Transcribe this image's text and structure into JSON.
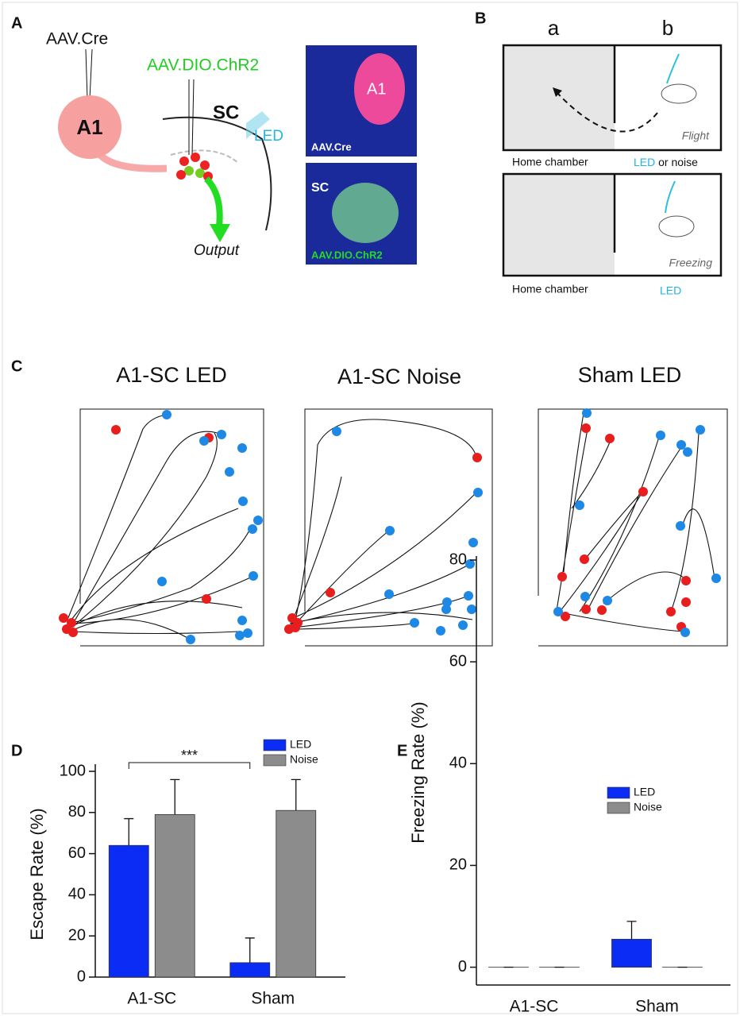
{
  "panels": {
    "A": {
      "letter": "A",
      "virus1": "AAV.Cre",
      "region": "A1",
      "virus2": "AAV.DIO.ChR2",
      "target": "SC",
      "light": "LED",
      "output": "Output",
      "image1": {
        "region": "A1",
        "label": "AAV.Cre"
      },
      "image2": {
        "region": "SC",
        "label": "AAV.DIO.ChR2"
      }
    },
    "B": {
      "letter": "B",
      "columns": [
        "a",
        "b"
      ],
      "top": {
        "behavior": "Flight",
        "left_label": "Home chamber",
        "stim_led": "LED",
        "stim_rest": " or noise"
      },
      "bottom": {
        "behavior": "Freezing",
        "left_label": "Home chamber",
        "stim_led": "LED"
      }
    },
    "C": {
      "letter": "C",
      "titles": [
        "A1-SC LED",
        "A1-SC Noise",
        "Sham LED"
      ]
    }
  },
  "chart_data": [
    {
      "type": "bar",
      "panel": "D",
      "ylabel": "Escape Rate (%)",
      "categories": [
        "A1-SC",
        "Sham"
      ],
      "series": [
        {
          "name": "LED",
          "color": "#0a2cf5",
          "values": [
            64,
            7
          ],
          "errors": [
            13,
            12
          ]
        },
        {
          "name": "Noise",
          "color": "#8c8c8c",
          "values": [
            79,
            81
          ],
          "errors": [
            17,
            15
          ]
        }
      ],
      "ylim": [
        0,
        100
      ],
      "yticks": [
        0,
        20,
        40,
        60,
        80,
        100
      ],
      "annotation": "***",
      "legend": "top-right"
    },
    {
      "type": "bar",
      "panel": "E",
      "ylabel": "Freezing Rate (%)",
      "categories": [
        "A1-SC",
        "Sham"
      ],
      "series": [
        {
          "name": "LED",
          "color": "#0a2cf5",
          "values": [
            0,
            5.5
          ],
          "errors": [
            0,
            3.5
          ]
        },
        {
          "name": "Noise",
          "color": "#8c8c8c",
          "values": [
            0,
            0
          ],
          "errors": [
            0,
            0
          ]
        }
      ],
      "ylim": [
        -3.5,
        80
      ],
      "yticks": [
        0,
        20,
        40,
        60,
        80
      ],
      "legend": "top-right"
    }
  ]
}
